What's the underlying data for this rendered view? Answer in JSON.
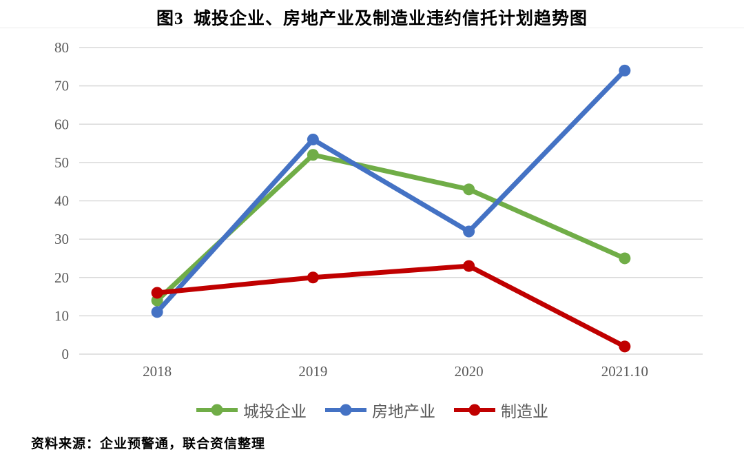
{
  "page": {
    "title": "图3  城投企业、房地产业及制造业违约信托计划趋势图",
    "source": "资料来源：企业预警通，联合资信整理"
  },
  "chart_data": {
    "type": "line",
    "title": "图3  城投企业、房地产业及制造业违约信托计划趋势图",
    "categories": [
      "2018",
      "2019",
      "2020",
      "2021.10"
    ],
    "series": [
      {
        "name": "城投企业",
        "color": "#70AD47",
        "values": [
          14,
          52,
          43,
          25
        ]
      },
      {
        "name": "房地产业",
        "color": "#4472C4",
        "values": [
          11,
          56,
          32,
          74
        ]
      },
      {
        "name": "制造业",
        "color": "#C00000",
        "values": [
          16,
          20,
          23,
          2
        ]
      }
    ],
    "xlabel": "",
    "ylabel": "",
    "ylim": [
      0,
      80
    ],
    "ytick_step": 10,
    "yticks": [
      0,
      10,
      20,
      30,
      40,
      50,
      60,
      70,
      80
    ],
    "grid": "horizontal-only",
    "legend_position": "bottom",
    "gridline_color": "#D9D9D9",
    "axis_label_color": "#595959",
    "line_width": 7,
    "marker_radius": 8.5
  }
}
